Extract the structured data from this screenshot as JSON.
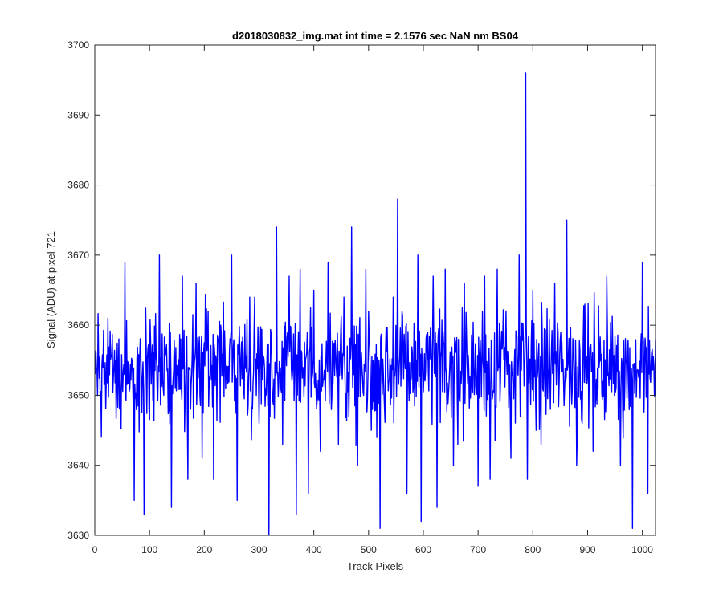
{
  "chart_data": {
    "type": "line",
    "title": "d2018030832_img.mat int time = 2.1576 sec  NaN nm BS04",
    "xlabel": "Track Pixels",
    "ylabel": "Signal (ADU) at pixel 721",
    "xlim": [
      0,
      1024
    ],
    "ylim": [
      3630,
      3700
    ],
    "xticks": [
      0,
      100,
      200,
      300,
      400,
      500,
      600,
      700,
      800,
      900,
      1000
    ],
    "yticks": [
      3630,
      3640,
      3650,
      3660,
      3670,
      3680,
      3690,
      3700
    ],
    "grid": false,
    "line_color": "#0000ff",
    "series": [
      {
        "x": [
          1,
          12,
          24,
          38,
          55,
          72,
          90,
          118,
          140,
          160,
          170,
          185,
          196,
          207,
          217,
          230,
          250,
          260,
          283,
          300,
          318,
          332,
          343,
          355,
          368,
          375,
          390,
          400,
          412,
          426,
          445,
          455,
          469,
          480,
          495,
          505,
          521,
          545,
          553,
          570,
          590,
          596,
          618,
          625,
          640,
          655,
          675,
          700,
          712,
          722,
          735,
          760,
          775,
          787,
          790,
          800,
          815,
          840,
          862,
          880,
          895,
          910,
          935,
          960,
          982,
          1000,
          1010,
          1024
        ],
        "values": [
          3653,
          3644,
          3661,
          3655,
          3669,
          3635,
          3633,
          3670,
          3634,
          3667,
          3638,
          3666,
          3641,
          3662,
          3638,
          3660,
          3670,
          3635,
          3664,
          3646,
          3630,
          3674,
          3643,
          3667,
          3633,
          3668,
          3636,
          3665,
          3642,
          3669,
          3643,
          3664,
          3674,
          3640,
          3668,
          3645,
          3631,
          3664,
          3678,
          3636,
          3670,
          3632,
          3667,
          3634,
          3668,
          3640,
          3666,
          3637,
          3667,
          3638,
          3668,
          3641,
          3670,
          3696,
          3638,
          3665,
          3643,
          3666,
          3675,
          3640,
          3663,
          3642,
          3667,
          3640,
          3631,
          3669,
          3636,
          3658
        ]
      }
    ]
  }
}
